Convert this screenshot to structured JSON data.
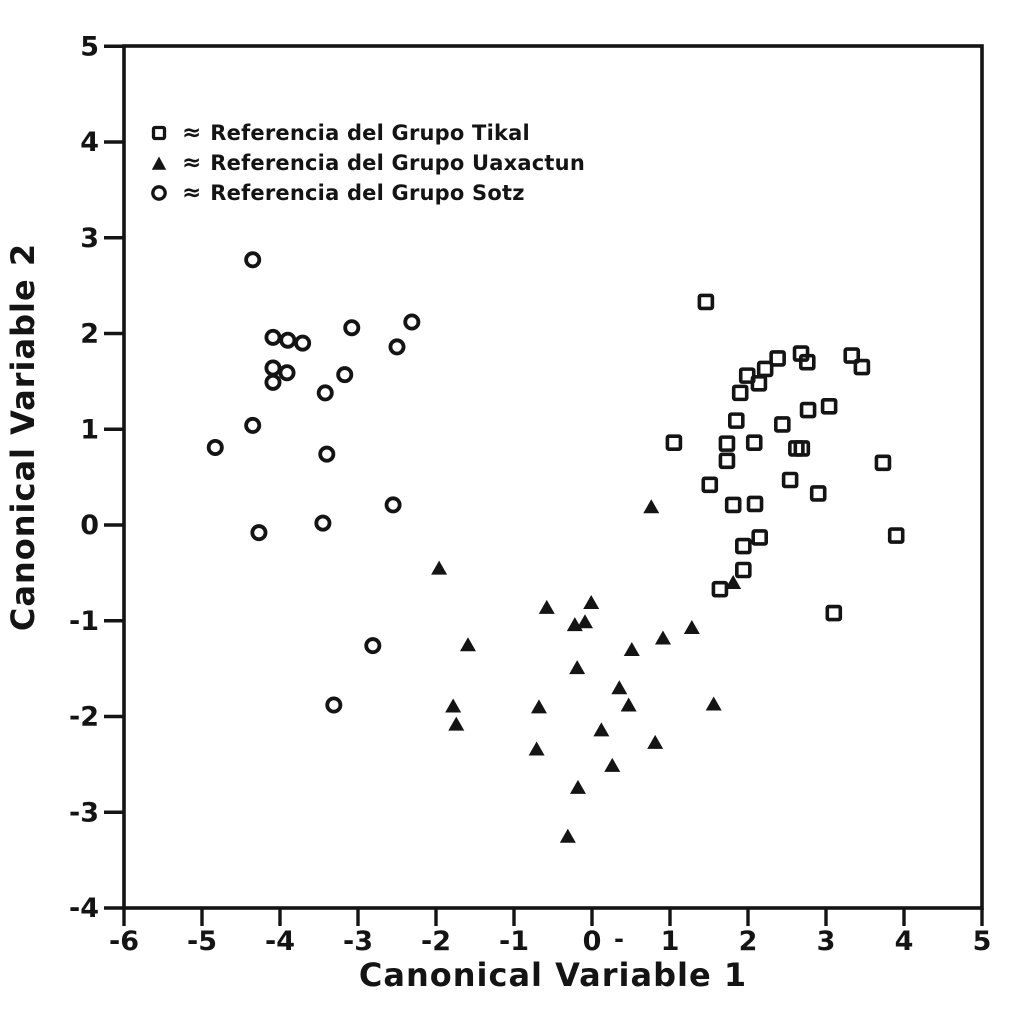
{
  "figure": {
    "background_color": "#ffffff",
    "ink_color": "#141414"
  },
  "legend": {
    "approx_symbol": "≈",
    "items": [
      {
        "marker": "square-outline",
        "label": "Referencia del Grupo Tikal"
      },
      {
        "marker": "triangle-filled",
        "label": "Referencia del Grupo Uaxactun"
      },
      {
        "marker": "circle-outline",
        "label": "Referencia del Grupo Sotz"
      }
    ]
  },
  "chart_data": {
    "type": "scatter",
    "title": "",
    "xlabel": "Canonical Variable 1",
    "ylabel": "Canonical Variable 2",
    "xlim": [
      -6,
      5
    ],
    "ylim": [
      -4,
      5
    ],
    "x_ticks": [
      "-6",
      "-5",
      "-4",
      "-3",
      "-2",
      "-1",
      "0",
      "1",
      "2",
      "3",
      "4",
      "5"
    ],
    "y_ticks": [
      "5",
      "4",
      "3",
      "2",
      "1",
      "0",
      "-1",
      "-2",
      "-3",
      "-4"
    ],
    "grid": false,
    "legend_position": "upper-left-inside",
    "series": [
      {
        "name": "Referencia del Grupo Tikal",
        "marker": "square-outline",
        "points": [
          [
            1.46,
            2.33
          ],
          [
            2.38,
            1.74
          ],
          [
            2.68,
            1.79
          ],
          [
            2.76,
            1.7
          ],
          [
            3.33,
            1.77
          ],
          [
            3.46,
            1.65
          ],
          [
            2.22,
            1.63
          ],
          [
            1.99,
            1.56
          ],
          [
            2.14,
            1.48
          ],
          [
            1.9,
            1.38
          ],
          [
            3.04,
            1.24
          ],
          [
            2.77,
            1.2
          ],
          [
            1.85,
            1.09
          ],
          [
            2.44,
            1.05
          ],
          [
            1.05,
            0.86
          ],
          [
            1.73,
            0.85
          ],
          [
            2.08,
            0.86
          ],
          [
            2.62,
            0.8
          ],
          [
            2.69,
            0.8
          ],
          [
            3.73,
            0.65
          ],
          [
            1.73,
            0.67
          ],
          [
            1.51,
            0.42
          ],
          [
            2.54,
            0.47
          ],
          [
            2.9,
            0.33
          ],
          [
            1.81,
            0.21
          ],
          [
            2.09,
            0.22
          ],
          [
            3.9,
            -0.11
          ],
          [
            1.94,
            -0.22
          ],
          [
            2.15,
            -0.13
          ],
          [
            1.94,
            -0.47
          ],
          [
            1.64,
            -0.67
          ],
          [
            3.1,
            -0.92
          ]
        ]
      },
      {
        "name": "Referencia del Grupo Uaxactun",
        "marker": "triangle-filled",
        "points": [
          [
            0.76,
            0.19
          ],
          [
            -1.96,
            -0.45
          ],
          [
            -0.58,
            -0.86
          ],
          [
            -0.01,
            -0.81
          ],
          [
            -0.22,
            -1.04
          ],
          [
            -0.09,
            -1.01
          ],
          [
            -1.59,
            -1.25
          ],
          [
            1.28,
            -1.07
          ],
          [
            0.91,
            -1.18
          ],
          [
            0.51,
            -1.3
          ],
          [
            -0.19,
            -1.49
          ],
          [
            0.35,
            -1.7
          ],
          [
            0.47,
            -1.88
          ],
          [
            1.56,
            -1.87
          ],
          [
            -1.78,
            -1.89
          ],
          [
            -1.74,
            -2.08
          ],
          [
            -0.68,
            -1.9
          ],
          [
            0.12,
            -2.14
          ],
          [
            0.81,
            -2.27
          ],
          [
            -0.71,
            -2.34
          ],
          [
            0.26,
            -2.51
          ],
          [
            -0.18,
            -2.74
          ],
          [
            -0.31,
            -3.25
          ],
          [
            1.81,
            -0.6
          ]
        ]
      },
      {
        "name": "Referencia del Grupo Sotz",
        "marker": "circle-outline",
        "points": [
          [
            -4.35,
            2.77
          ],
          [
            -4.09,
            1.96
          ],
          [
            -3.9,
            1.93
          ],
          [
            -3.71,
            1.9
          ],
          [
            -3.08,
            2.06
          ],
          [
            -2.31,
            2.12
          ],
          [
            -2.5,
            1.86
          ],
          [
            -4.09,
            1.64
          ],
          [
            -3.91,
            1.59
          ],
          [
            -4.09,
            1.49
          ],
          [
            -3.17,
            1.57
          ],
          [
            -3.42,
            1.38
          ],
          [
            -4.35,
            1.04
          ],
          [
            -4.83,
            0.81
          ],
          [
            -3.4,
            0.74
          ],
          [
            -2.55,
            0.21
          ],
          [
            -3.45,
            0.02
          ],
          [
            -4.27,
            -0.08
          ],
          [
            -2.81,
            -1.26
          ],
          [
            -3.31,
            -1.88
          ]
        ]
      }
    ]
  },
  "artifacts": {
    "stray_dash": "-"
  }
}
